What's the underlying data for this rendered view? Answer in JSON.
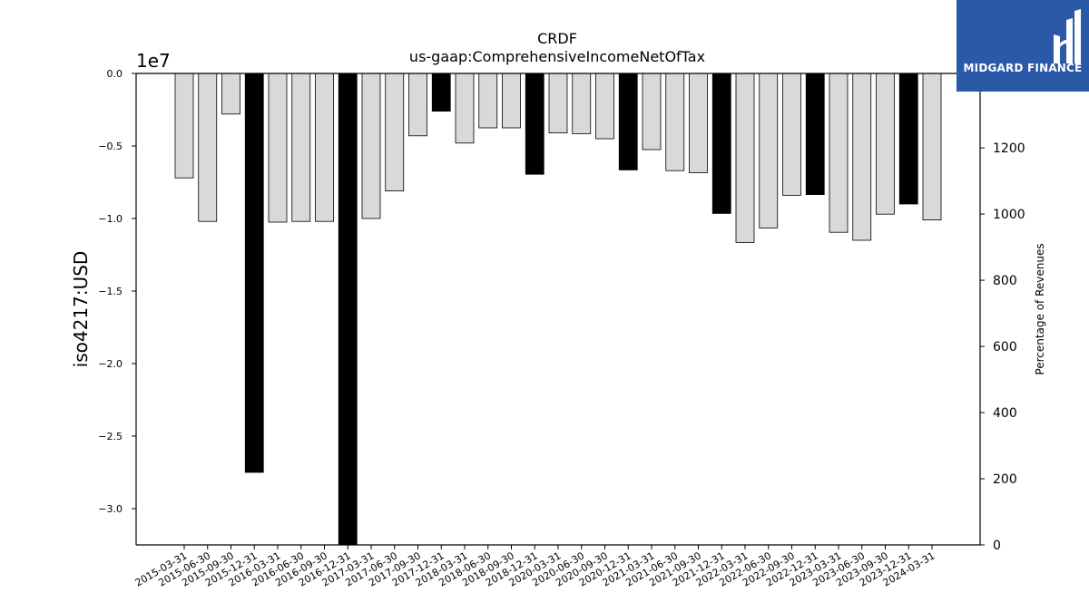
{
  "chart_data": {
    "type": "bar",
    "title": "CRDF",
    "subtitle": "us-gaap:ComprehensiveIncomeNetOfTax",
    "ylabel": "iso4217:USD",
    "y2label": "Percentage of Revenues",
    "y_exponent_label": "1e7",
    "ylim": [
      -32500000,
      0
    ],
    "y2lim": [
      0,
      1425
    ],
    "yticks": [
      "0.0",
      "−0.5",
      "−1.0",
      "−1.5",
      "−2.0",
      "−2.5",
      "−3.0"
    ],
    "y2ticks": [
      "0",
      "200",
      "400",
      "600",
      "800",
      "1000",
      "1200"
    ],
    "categories": [
      "2015-03-31",
      "2015-06-30",
      "2015-09-30",
      "2015-12-31",
      "2016-03-31",
      "2016-06-30",
      "2016-09-30",
      "2016-12-31",
      "2017-03-31",
      "2017-06-30",
      "2017-09-30",
      "2017-12-31",
      "2018-03-31",
      "2018-06-30",
      "2018-09-30",
      "2018-12-31",
      "2020-03-31",
      "2020-06-30",
      "2020-09-30",
      "2020-12-31",
      "2021-03-31",
      "2021-06-30",
      "2021-09-30",
      "2021-12-31",
      "2022-03-31",
      "2022-06-30",
      "2022-09-30",
      "2022-12-31",
      "2023-03-31",
      "2023-06-30",
      "2023-09-30",
      "2023-12-31",
      "2024-03-31"
    ],
    "values": [
      -7200000,
      -10200000,
      -2800000,
      -27500000,
      -10250000,
      -10200000,
      -10200000,
      -32500000,
      -10000000,
      -8100000,
      -4300000,
      -2600000,
      -4800000,
      -3750000,
      -3750000,
      -6950000,
      -4100000,
      -4150000,
      -4500000,
      -6650000,
      -5250000,
      -6700000,
      -6850000,
      -9650000,
      -11650000,
      -10650000,
      -8400000,
      -8350000,
      -10950000,
      -11500000,
      -9700000,
      -9000000,
      -10100000
    ],
    "annual": [
      false,
      false,
      false,
      true,
      false,
      false,
      false,
      true,
      false,
      false,
      false,
      true,
      false,
      false,
      false,
      true,
      false,
      false,
      false,
      true,
      false,
      false,
      false,
      true,
      false,
      false,
      false,
      true,
      false,
      false,
      false,
      true,
      false
    ],
    "colors": {
      "quarterly": "#d9d9d9",
      "annual": "#000000",
      "edge": "#000000"
    },
    "grid": false
  },
  "logo": {
    "name": "MIDGARD FINANCE",
    "bg": "#2a59a8"
  }
}
